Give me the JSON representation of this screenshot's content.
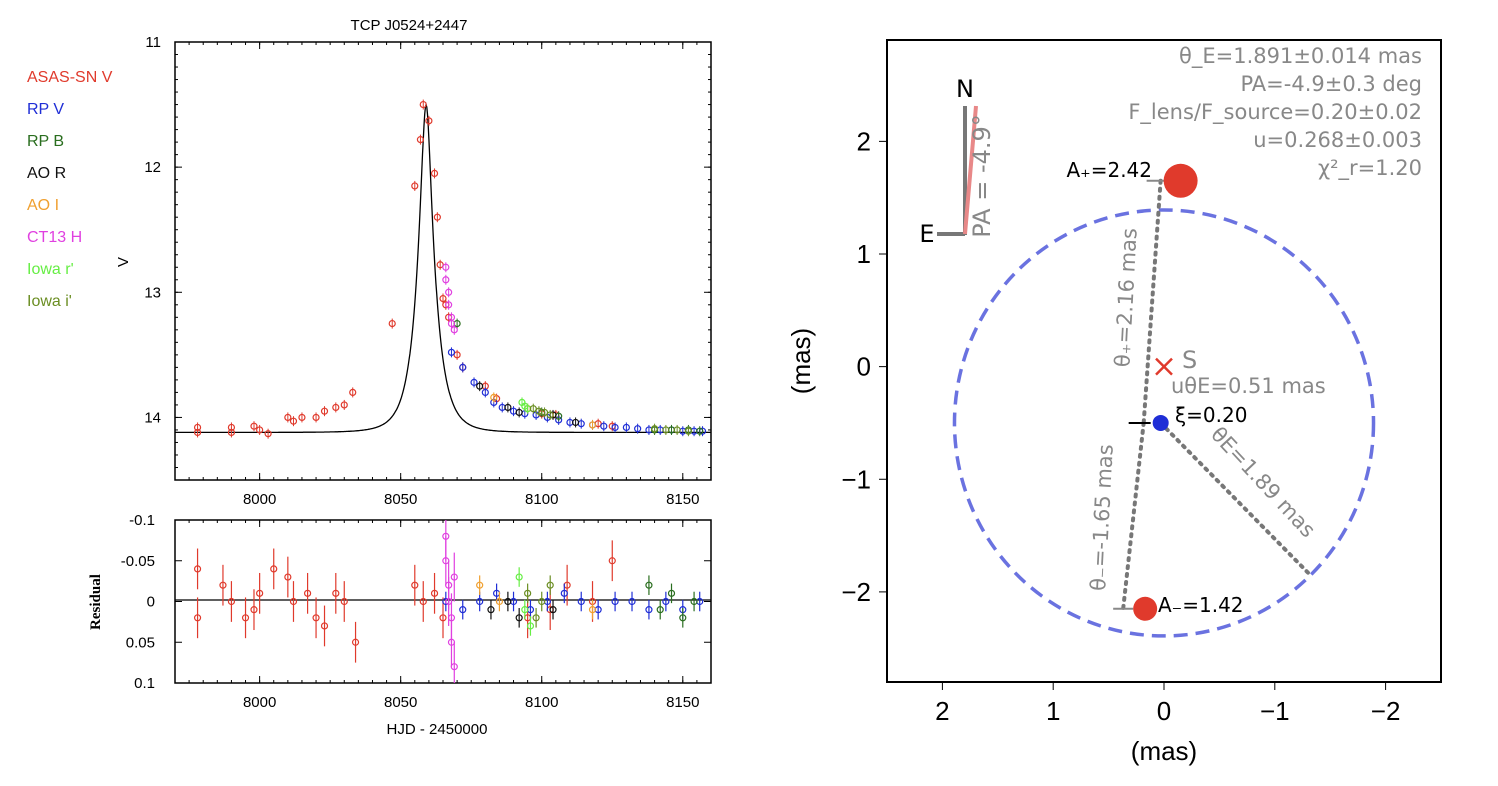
{
  "colors": {
    "asassn": "#e03a2c",
    "rpv": "#1f2ed6",
    "rpb": "#2a6e1f",
    "aor": "#111111",
    "aoi": "#f0a030",
    "ct13": "#e040e0",
    "iowar": "#66ee44",
    "iowai": "#6b8e23",
    "model": "#000000",
    "circle": "#6a72e0",
    "gray": "#888888",
    "red": "#e03a2c",
    "blue": "#1f2ed6"
  },
  "chart_data": [
    {
      "type": "scatter",
      "title": "TCP J0524+2447",
      "xlabel": "",
      "ylabel": "V",
      "xlim": [
        7970,
        8160
      ],
      "ylim": [
        14.5,
        11
      ],
      "xticks": [
        "8000",
        "8050",
        "8100",
        "8150"
      ],
      "yticks": [
        "11",
        "12",
        "13",
        "14"
      ],
      "model": {
        "t0": 8059.0,
        "peak": 11.5,
        "base": 14.12,
        "tE": 6.3,
        "u0": 0.268
      },
      "legend": [
        "ASAS-SN V",
        "RP V",
        "RP B",
        "AO R",
        "AO I",
        "CT13 H",
        "Iowa r'",
        "Iowa i'"
      ],
      "series": [
        {
          "name": "ASAS-SN V",
          "x": [
            7978,
            7978,
            7990,
            7990,
            7998,
            8000,
            8003,
            8010,
            8012,
            8015,
            8020,
            8023,
            8027,
            8030,
            8033,
            8047,
            8055,
            8057,
            8058,
            8060,
            8062,
            8063,
            8064,
            8065,
            8066,
            8067,
            8070,
            8072,
            8080,
            8084,
            8095,
            8100,
            8105,
            8120,
            8125
          ],
          "y": [
            14.08,
            14.12,
            14.08,
            14.12,
            14.07,
            14.1,
            14.13,
            14.0,
            14.03,
            14.0,
            14.0,
            13.95,
            13.92,
            13.9,
            13.8,
            13.25,
            12.15,
            11.78,
            11.5,
            11.63,
            12.05,
            12.4,
            12.78,
            13.05,
            13.1,
            13.2,
            13.5,
            13.6,
            13.75,
            13.85,
            13.93,
            13.97,
            13.98,
            14.05,
            14.07
          ]
        },
        {
          "name": "RP V",
          "x": [
            8068,
            8072,
            8076,
            8080,
            8083,
            8086,
            8090,
            8094,
            8098,
            8102,
            8106,
            8110,
            8114,
            8118,
            8122,
            8126,
            8130,
            8134,
            8138,
            8142,
            8146,
            8150,
            8154,
            8157
          ],
          "y": [
            13.48,
            13.6,
            13.72,
            13.8,
            13.88,
            13.92,
            13.95,
            13.97,
            13.98,
            14.0,
            14.02,
            14.04,
            14.05,
            14.06,
            14.07,
            14.08,
            14.08,
            14.09,
            14.1,
            14.1,
            14.1,
            14.11,
            14.11,
            14.11
          ]
        },
        {
          "name": "RP B",
          "x": [
            8070,
            8100,
            8106,
            8140,
            8146,
            8152,
            8156
          ],
          "y": [
            13.25,
            13.96,
            13.99,
            14.1,
            14.1,
            14.1,
            14.11
          ]
        },
        {
          "name": "AO R",
          "x": [
            8078,
            8088,
            8092,
            8104,
            8112
          ],
          "y": [
            13.75,
            13.92,
            13.96,
            13.98,
            14.04
          ]
        },
        {
          "name": "AO I",
          "x": [
            8083,
            8095,
            8118
          ],
          "y": [
            13.84,
            13.93,
            14.06
          ]
        },
        {
          "name": "CT13 H",
          "x": [
            8066,
            8066,
            8067,
            8067,
            8068,
            8068,
            8069
          ],
          "y": [
            12.8,
            12.9,
            13.0,
            13.1,
            13.2,
            13.25,
            13.3
          ]
        },
        {
          "name": "Iowa r'",
          "x": [
            8093,
            8094,
            8095
          ],
          "y": [
            13.88,
            13.91,
            13.93
          ]
        },
        {
          "name": "Iowa i'",
          "x": [
            8097,
            8099,
            8101,
            8103,
            8140,
            8144,
            8148,
            8152
          ],
          "y": [
            13.93,
            13.95,
            13.96,
            13.98,
            14.09,
            14.1,
            14.1,
            14.11
          ]
        }
      ]
    },
    {
      "type": "scatter",
      "title": "",
      "xlabel": "HJD - 2450000",
      "ylabel": "Residual",
      "xlim": [
        7970,
        8160
      ],
      "ylim": [
        0.1,
        -0.1
      ],
      "xticks": [
        "8000",
        "8050",
        "8100",
        "8150"
      ],
      "yticks": [
        "-0.1",
        "-0.05",
        "0",
        "0.05",
        "0.1"
      ],
      "series": [
        {
          "name": "ASAS-SN V",
          "x": [
            7978,
            7978,
            7987,
            7990,
            7995,
            7998,
            8000,
            8005,
            8010,
            8012,
            8017,
            8020,
            8023,
            8027,
            8030,
            8034,
            8055,
            8058,
            8062,
            8065,
            8095,
            8103,
            8109,
            8118,
            8125
          ],
          "y": [
            -0.04,
            0.02,
            -0.02,
            0.0,
            0.02,
            0.01,
            -0.01,
            -0.04,
            -0.03,
            0.0,
            -0.01,
            0.02,
            0.03,
            -0.01,
            0.0,
            0.05,
            -0.02,
            0.0,
            -0.01,
            0.02,
            0.02,
            0.01,
            -0.02,
            0.0,
            -0.05
          ]
        },
        {
          "name": "RP V",
          "x": [
            8066,
            8072,
            8078,
            8084,
            8090,
            8096,
            8102,
            8108,
            8114,
            8120,
            8126,
            8132,
            8138,
            8144,
            8150,
            8156
          ],
          "y": [
            0.0,
            0.01,
            0.0,
            -0.01,
            0.0,
            0.01,
            0.0,
            -0.01,
            0.0,
            0.01,
            0.0,
            0.0,
            0.01,
            0.0,
            0.01,
            0.0
          ]
        },
        {
          "name": "RP B",
          "x": [
            8138,
            8142,
            8146,
            8150,
            8154
          ],
          "y": [
            -0.02,
            0.01,
            -0.01,
            0.02,
            0.0
          ]
        },
        {
          "name": "AO R",
          "x": [
            8082,
            8088,
            8092,
            8104
          ],
          "y": [
            0.01,
            0.0,
            0.02,
            0.01
          ]
        },
        {
          "name": "AO I",
          "x": [
            8078,
            8085,
            8118
          ],
          "y": [
            -0.02,
            0.0,
            0.01
          ]
        },
        {
          "name": "CT13 H",
          "x": [
            8066,
            8066,
            8067,
            8067,
            8068,
            8068,
            8069,
            8069
          ],
          "y": [
            -0.08,
            -0.05,
            -0.02,
            0.0,
            0.02,
            0.05,
            0.08,
            -0.03
          ]
        },
        {
          "name": "Iowa r'",
          "x": [
            8092,
            8094,
            8096
          ],
          "y": [
            -0.03,
            0.01,
            0.03
          ]
        },
        {
          "name": "Iowa i'",
          "x": [
            8095,
            8098,
            8100,
            8103
          ],
          "y": [
            -0.01,
            0.02,
            0.0,
            -0.02
          ]
        }
      ]
    },
    {
      "type": "scatter",
      "title": "",
      "xlabel": "(mas)",
      "ylabel": "(mas)",
      "xlim": [
        2.5,
        -2.5
      ],
      "ylim": [
        -2.8,
        2.9
      ],
      "xticks": [
        "2",
        "1",
        "0",
        "−1",
        "−2"
      ],
      "yticks": [
        "−2",
        "−1",
        "0",
        "1",
        "2"
      ],
      "einstein_ring": {
        "cx": 0.0,
        "cy": -0.5,
        "radius": 1.891
      },
      "points": [
        {
          "name": "A+",
          "x": -0.15,
          "y": 1.65
        },
        {
          "name": "A-",
          "x": 0.17,
          "y": -2.15
        },
        {
          "name": "S",
          "x": 0.0,
          "y": 0.0
        },
        {
          "name": "lens",
          "x": 0.03,
          "y": -0.5
        }
      ],
      "compass_pa_deg": -4.9
    }
  ],
  "right": {
    "params": [
      "θ_E=1.891±0.014 mas",
      "PA=-4.9±0.3 deg",
      "F_lens/F_source=0.20±0.02",
      "u=0.268±0.003",
      "χ²_r=1.20"
    ],
    "a_plus": "A₊=2.42",
    "a_minus": "A₋=1.42",
    "source": "S",
    "u_theta": "uθE=0.51 mas",
    "xi": "ξ=0.20",
    "theta_plus": "θ₊=2.16 mas",
    "theta_minus": "θ₋=-1.65 mas",
    "theta_e": "θE=1.89 mas",
    "compass_n": "N",
    "compass_e": "E",
    "compass_pa": "PA = -4.9°"
  }
}
